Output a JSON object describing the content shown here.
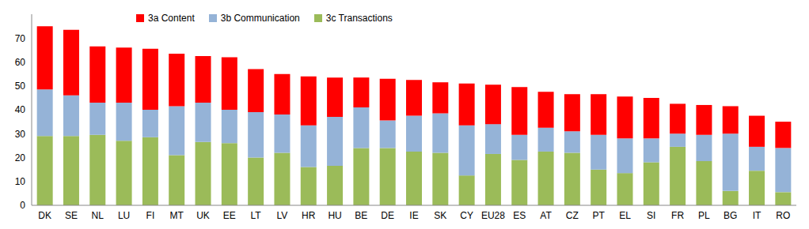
{
  "chart_data": {
    "type": "bar",
    "stacked": true,
    "grid": false,
    "legend": "upper left",
    "categories": [
      "DK",
      "SE",
      "NL",
      "LU",
      "FI",
      "MT",
      "UK",
      "EE",
      "LT",
      "LV",
      "HR",
      "HU",
      "BE",
      "DE",
      "IE",
      "SK",
      "CY",
      "EU28",
      "ES",
      "AT",
      "CZ",
      "PT",
      "EL",
      "SI",
      "FR",
      "PL",
      "BG",
      "IT",
      "RO"
    ],
    "series": [
      {
        "name": "3a Content",
        "color": "#ff0000",
        "values": [
          26.5,
          27.5,
          23.5,
          23,
          25.5,
          22,
          19.5,
          22,
          18,
          17,
          20.5,
          16.5,
          12.5,
          17.5,
          15,
          13,
          17.5,
          16.5,
          20,
          15,
          15.5,
          17,
          17.5,
          17,
          12.5,
          12.5,
          11.5,
          13,
          11
        ]
      },
      {
        "name": "3b Communication",
        "color": "#95b3d7",
        "values": [
          19.5,
          17,
          13.5,
          16,
          11.5,
          20.5,
          16.5,
          14,
          19,
          16,
          17.5,
          20.5,
          17,
          11.5,
          15,
          16.5,
          21,
          12.5,
          10.5,
          10,
          9,
          14.5,
          14.5,
          10,
          5.5,
          11,
          24,
          10,
          18.5
        ]
      },
      {
        "name": "3c Transactions",
        "color": "#9bbb59",
        "values": [
          29,
          29,
          29.5,
          27,
          28.5,
          21,
          26.5,
          26,
          20,
          22,
          16,
          16.5,
          24,
          24,
          22.5,
          22,
          12.5,
          21.5,
          19,
          22.5,
          22,
          15,
          13.5,
          18,
          24.5,
          18.5,
          6,
          14.5,
          5.5
        ]
      }
    ],
    "ylim": [
      0,
      80
    ],
    "yticks": [
      0,
      10,
      20,
      30,
      40,
      50,
      60,
      70
    ]
  }
}
